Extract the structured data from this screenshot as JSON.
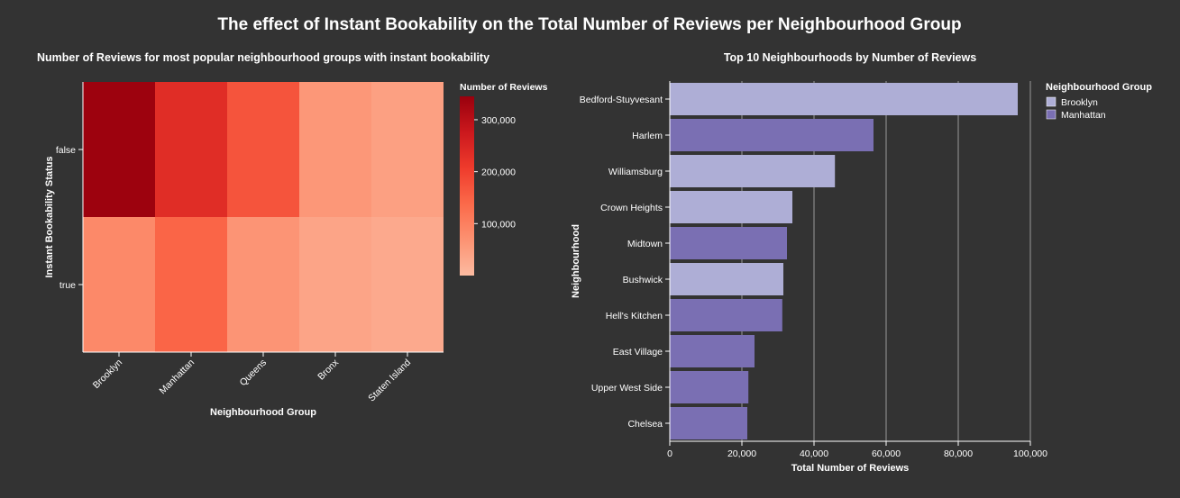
{
  "title": "The effect of Instant Bookability on the Total Number of Reviews per Neighbourhood Group",
  "chart_data": [
    {
      "type": "heatmap",
      "title": "Number of Reviews for most popular neighbourhood groups with instant bookability",
      "xlabel": "Neighbourhood Group",
      "ylabel": "Instant Bookability Status",
      "x_categories": [
        "Brooklyn",
        "Manhattan",
        "Queens",
        "Bronx",
        "Staten Island"
      ],
      "y_categories": [
        "false",
        "true"
      ],
      "values": [
        [
          340000,
          235000,
          170000,
          60000,
          45000
        ],
        [
          85000,
          145000,
          65000,
          38000,
          30000
        ]
      ],
      "legend_title": "Number of Reviews",
      "legend_ticks": [
        100000,
        200000,
        300000
      ],
      "color_domain": [
        0,
        345000
      ],
      "color_scale": [
        "#fcbba1",
        "#fc9272",
        "#fb6a4a",
        "#ef3b2c",
        "#cb181d",
        "#99000d"
      ],
      "legend_position": "right"
    },
    {
      "type": "bar",
      "orientation": "horizontal",
      "title": "Top 10 Neighbourhoods by Number of Reviews",
      "xlabel": "Total Number of Reviews",
      "ylabel": "Neighbourhood",
      "categories": [
        "Bedford-Stuyvesant",
        "Harlem",
        "Williamsburg",
        "Crown Heights",
        "Midtown",
        "Bushwick",
        "Hell's Kitchen",
        "East Village",
        "Upper West Side",
        "Chelsea"
      ],
      "values": [
        96500,
        56500,
        45800,
        34000,
        32500,
        31500,
        31200,
        23500,
        21800,
        21500
      ],
      "groups": [
        "Brooklyn",
        "Manhattan",
        "Brooklyn",
        "Brooklyn",
        "Manhattan",
        "Brooklyn",
        "Manhattan",
        "Manhattan",
        "Manhattan",
        "Manhattan"
      ],
      "xlim": [
        0,
        100000
      ],
      "x_ticks": [
        0,
        20000,
        40000,
        60000,
        80000,
        100000
      ],
      "grid": true,
      "legend_title": "Neighbourhood Group",
      "legend": [
        {
          "name": "Brooklyn",
          "color": "#aeaed6"
        },
        {
          "name": "Manhattan",
          "color": "#7a6fb3"
        }
      ],
      "legend_position": "top-right"
    }
  ]
}
